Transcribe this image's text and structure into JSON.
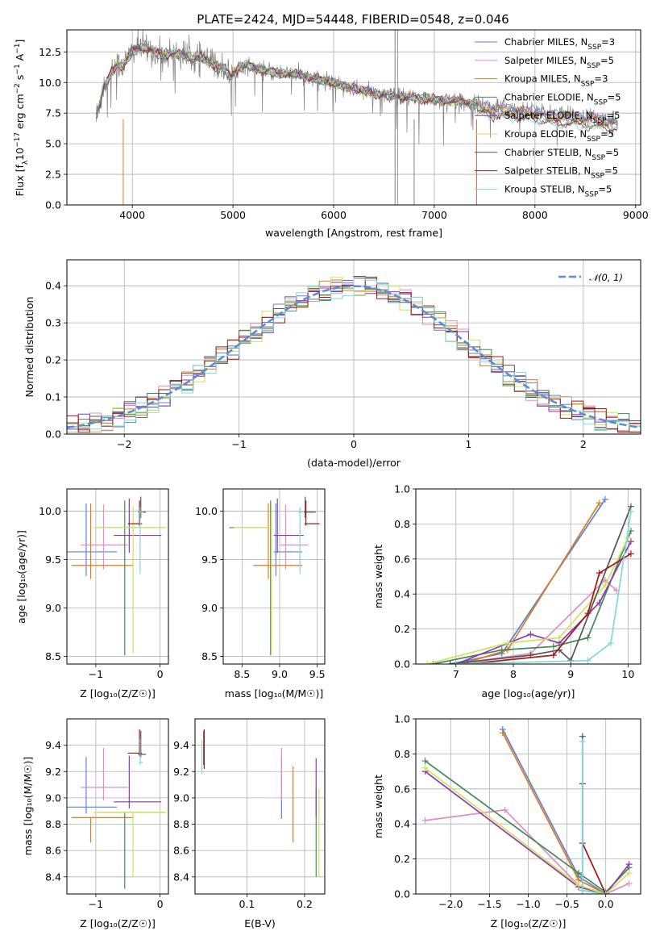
{
  "colors": {
    "Chabrier MILES": "#5b82d9",
    "Salpeter MILES": "#e48cc3",
    "Kroupa MILES": "#e07a21",
    "Chabrier ELODIE": "#3f8a54",
    "Salpeter ELODIE": "#8e37b2",
    "Kroupa ELODIE": "#cde45a",
    "Chabrier STELIB": "#555555",
    "Salpeter STELIB": "#a01818",
    "Kroupa STELIB": "#7fd9d9",
    "data": "#808080",
    "normal": "#5b8ad9"
  },
  "chart_data": [
    {
      "id": "spectrum",
      "type": "line",
      "title": "PLATE=2424, MJD=54448, FIBERID=0548, z=0.046",
      "xlabel": "wavelength [Angstrom, rest frame]",
      "ylabel": "Flux [f",
      "ylabel_sub": "λ",
      "ylabel_rest": "10",
      "ylabel_sup1": "−17",
      "ylabel_tail": " erg cm",
      "ylabel_sup2": "−2",
      "ylabel_tail2": " s",
      "ylabel_sup3": "−1",
      "ylabel_tail3": " A",
      "ylabel_sup4": "−1",
      "ylabel_end": "]",
      "xlim": [
        3350,
        9050
      ],
      "ylim": [
        0,
        14.3
      ],
      "xticks": [
        4000,
        5000,
        6000,
        7000,
        8000,
        9000
      ],
      "yticks": [
        0.0,
        2.5,
        5.0,
        7.5,
        10.0,
        12.5
      ],
      "legend_position": "upper right",
      "legend": [
        {
          "name": "Chabrier MILES",
          "n": "3"
        },
        {
          "name": "Salpeter MILES",
          "n": "5"
        },
        {
          "name": "Kroupa MILES",
          "n": "3"
        },
        {
          "name": "Chabrier ELODIE",
          "n": "5"
        },
        {
          "name": "Salpeter ELODIE",
          "n": "5"
        },
        {
          "name": "Kroupa ELODIE",
          "n": "5"
        },
        {
          "name": "Chabrier STELIB",
          "n": "5"
        },
        {
          "name": "Salpeter STELIB",
          "n": "5"
        },
        {
          "name": "Kroupa STELIB",
          "n": "5"
        }
      ],
      "legend_prefix": ", N",
      "legend_sub": "SSP",
      "continuum": [
        [
          3640,
          7.2
        ],
        [
          3680,
          8.4
        ],
        [
          3720,
          9.8
        ],
        [
          3760,
          10.2
        ],
        [
          3800,
          11.0
        ],
        [
          3850,
          11.5
        ],
        [
          3900,
          11.3
        ],
        [
          3950,
          11.9
        ],
        [
          4000,
          12.6
        ],
        [
          4100,
          12.9
        ],
        [
          4200,
          12.6
        ],
        [
          4300,
          12.2
        ],
        [
          4400,
          12.4
        ],
        [
          4500,
          12.3
        ],
        [
          4600,
          12.0
        ],
        [
          4700,
          12.0
        ],
        [
          4800,
          11.5
        ],
        [
          4900,
          11.2
        ],
        [
          4980,
          10.5
        ],
        [
          5050,
          11.2
        ],
        [
          5150,
          11.4
        ],
        [
          5250,
          11.1
        ],
        [
          5400,
          10.8
        ],
        [
          5600,
          10.7
        ],
        [
          5800,
          10.3
        ],
        [
          6000,
          10.0
        ],
        [
          6200,
          9.5
        ],
        [
          6400,
          9.1
        ],
        [
          6600,
          8.9
        ],
        [
          6800,
          8.7
        ],
        [
          7000,
          8.6
        ],
        [
          7200,
          8.5
        ],
        [
          7400,
          8.3
        ],
        [
          7600,
          8.0
        ],
        [
          7800,
          7.9
        ],
        [
          8000,
          7.7
        ],
        [
          8200,
          7.4
        ],
        [
          8400,
          7.3
        ],
        [
          8600,
          7.1
        ],
        [
          8800,
          6.9
        ]
      ],
      "dropouts": [
        3910,
        6610,
        6800,
        7420
      ]
    },
    {
      "id": "residuals",
      "type": "histogram",
      "xlabel": "(data-model)/error",
      "ylabel": "Normed distribution",
      "xlim": [
        -2.5,
        2.5
      ],
      "ylim": [
        0,
        0.47
      ],
      "xticks": [
        -2,
        -1,
        0,
        1,
        2
      ],
      "yticks": [
        0.0,
        0.1,
        0.2,
        0.3,
        0.4
      ],
      "bin_width": 0.1,
      "legend_position": "upper right",
      "legend": [
        {
          "name": "𝒩(0, 1)"
        }
      ]
    },
    {
      "id": "age-vs-Z",
      "type": "errorbar",
      "xlabel": "Z [log₁₀(Z/Z☉)]",
      "ylabel": "age  [log₁₀(age/yr)]",
      "xlim": [
        -1.45,
        0.13
      ],
      "ylim": [
        8.42,
        10.23
      ],
      "xticks": [
        -1,
        0
      ],
      "yticks": [
        8.5,
        9.0,
        9.5,
        10.0
      ],
      "points": [
        {
          "model": "Chabrier MILES",
          "x": -1.15,
          "xerr": [
            0.45,
            0.48
          ],
          "y": 9.58,
          "yerr": [
            0.25,
            0.5
          ]
        },
        {
          "model": "Salpeter MILES",
          "x": -0.88,
          "xerr": [
            0.35,
            0.38
          ],
          "y": 9.65,
          "yerr": [
            0.25,
            0.42
          ]
        },
        {
          "model": "Kroupa MILES",
          "x": -1.08,
          "xerr": [
            0.3,
            0.66
          ],
          "y": 9.44,
          "yerr": [
            0.14,
            0.64
          ]
        },
        {
          "model": "Chabrier ELODIE",
          "x": -0.55,
          "xerr": [
            0.4,
            0.62
          ],
          "y": 9.83,
          "yerr": [
            1.32,
            0.28
          ]
        },
        {
          "model": "Salpeter ELODIE",
          "x": -0.48,
          "xerr": [
            0.24,
            0.5
          ],
          "y": 9.75,
          "yerr": [
            0.18,
            0.38
          ]
        },
        {
          "model": "Kroupa ELODIE",
          "x": -0.42,
          "xerr": [
            0.62,
            0.52
          ],
          "y": 9.83,
          "yerr": [
            1.3,
            0.22
          ]
        },
        {
          "model": "Chabrier STELIB",
          "x": -0.3,
          "xerr": [
            0.04,
            0.08
          ],
          "y": 9.99,
          "yerr": [
            0.06,
            0.16
          ]
        },
        {
          "model": "Salpeter STELIB",
          "x": -0.32,
          "xerr": [
            0.18,
            0.04
          ],
          "y": 9.87,
          "yerr": [
            0.02,
            0.24
          ]
        },
        {
          "model": "Kroupa STELIB",
          "x": -0.31,
          "xerr": [
            0.02,
            0.04
          ],
          "y": 9.99,
          "yerr": [
            0.64,
            0.05
          ]
        }
      ]
    },
    {
      "id": "age-vs-mass",
      "type": "errorbar",
      "xlabel": "mass [log₁₀(M/M☉)]",
      "xlim": [
        8.25,
        9.6
      ],
      "ylim": [
        8.42,
        10.23
      ],
      "xticks": [
        8.5,
        9.0,
        9.5
      ],
      "yticks": [
        8.5,
        9.0,
        9.5,
        10.0
      ],
      "points": [
        {
          "model": "Chabrier MILES",
          "x": 8.95,
          "xerr": [
            0.03,
            0.35
          ],
          "y": 9.58,
          "yerr": [
            0.25,
            0.5
          ]
        },
        {
          "model": "Salpeter MILES",
          "x": 9.08,
          "xerr": [
            0.08,
            0.3
          ],
          "y": 9.65,
          "yerr": [
            0.25,
            0.42
          ]
        },
        {
          "model": "Kroupa MILES",
          "x": 8.85,
          "xerr": [
            0.2,
            0.45
          ],
          "y": 9.44,
          "yerr": [
            0.14,
            0.64
          ]
        },
        {
          "model": "Chabrier ELODIE",
          "x": 8.88,
          "xerr": [
            0.55,
            0.0
          ],
          "y": 9.83,
          "yerr": [
            1.32,
            0.28
          ]
        },
        {
          "model": "Salpeter ELODIE",
          "x": 8.97,
          "xerr": [
            0.05,
            0.35
          ],
          "y": 9.75,
          "yerr": [
            0.18,
            0.38
          ]
        },
        {
          "model": "Kroupa ELODIE",
          "x": 8.89,
          "xerr": [
            0.5,
            0.01
          ],
          "y": 9.83,
          "yerr": [
            1.3,
            0.22
          ]
        },
        {
          "model": "Chabrier STELIB",
          "x": 9.34,
          "xerr": [
            0.02,
            0.14
          ],
          "y": 9.99,
          "yerr": [
            0.06,
            0.16
          ]
        },
        {
          "model": "Salpeter STELIB",
          "x": 9.35,
          "xerr": [
            0.02,
            0.18
          ],
          "y": 9.87,
          "yerr": [
            0.02,
            0.24
          ]
        },
        {
          "model": "Kroupa STELIB",
          "x": 9.27,
          "xerr": [
            0.02,
            0.04
          ],
          "y": 9.99,
          "yerr": [
            0.64,
            0.05
          ]
        }
      ]
    },
    {
      "id": "weight-vs-age",
      "type": "line",
      "xlabel": "age  [log₁₀(age/yr)]",
      "ylabel": "mass weight",
      "xlim": [
        6.3,
        10.22
      ],
      "ylim": [
        0,
        1.0
      ],
      "xticks": [
        7,
        8,
        9,
        10
      ],
      "yticks": [
        0.0,
        0.2,
        0.4,
        0.6,
        0.8,
        1.0
      ],
      "series": [
        {
          "model": "Chabrier MILES",
          "x": [
            6.9,
            7.8,
            9.6
          ],
          "y": [
            0.0,
            0.06,
            0.94
          ]
        },
        {
          "model": "Salpeter MILES",
          "x": [
            7.0,
            8.3,
            9.6,
            9.8
          ],
          "y": [
            0.0,
            0.06,
            0.48,
            0.42
          ]
        },
        {
          "model": "Kroupa MILES",
          "x": [
            7.1,
            7.9,
            9.5
          ],
          "y": [
            0.0,
            0.08,
            0.92
          ]
        },
        {
          "model": "Chabrier ELODIE",
          "x": [
            6.6,
            7.8,
            8.7,
            9.3,
            10.05
          ],
          "y": [
            0.0,
            0.08,
            0.1,
            0.15,
            0.76
          ]
        },
        {
          "model": "Salpeter ELODIE",
          "x": [
            7.0,
            8.3,
            8.8,
            9.5,
            10.05
          ],
          "y": [
            0.0,
            0.17,
            0.12,
            0.35,
            0.7
          ]
        },
        {
          "model": "Kroupa ELODIE",
          "x": [
            6.5,
            7.9,
            8.8,
            9.6,
            10.0
          ],
          "y": [
            0.0,
            0.12,
            0.15,
            0.45,
            0.72
          ]
        },
        {
          "model": "Chabrier STELIB",
          "x": [
            6.9,
            8.3,
            8.8,
            9.0,
            10.05
          ],
          "y": [
            0.0,
            0.05,
            0.08,
            0.02,
            0.9
          ]
        },
        {
          "model": "Salpeter STELIB",
          "x": [
            7.2,
            8.7,
            9.3,
            9.5,
            10.05
          ],
          "y": [
            0.0,
            0.05,
            0.29,
            0.52,
            0.63
          ]
        },
        {
          "model": "Kroupa STELIB",
          "x": [
            7.0,
            9.3,
            9.7,
            10.05
          ],
          "y": [
            0.0,
            0.02,
            0.12,
            0.87
          ]
        }
      ]
    },
    {
      "id": "mass-vs-Z",
      "type": "errorbar",
      "xlabel": "Z [log₁₀(Z/Z☉)]",
      "ylabel": "mass [log₁₀(M/M☉)]",
      "xlim": [
        -1.45,
        0.13
      ],
      "ylim": [
        8.27,
        9.6
      ],
      "xticks": [
        -1,
        0
      ],
      "yticks": [
        8.4,
        8.6,
        8.8,
        9.0,
        9.2,
        9.4
      ],
      "points": [
        {
          "model": "Chabrier MILES",
          "x": -1.15,
          "xerr": [
            0.45,
            0.48
          ],
          "y": 8.93,
          "yerr": [
            0.05,
            0.38
          ]
        },
        {
          "model": "Salpeter MILES",
          "x": -0.88,
          "xerr": [
            0.35,
            0.38
          ],
          "y": 9.08,
          "yerr": [
            0.1,
            0.3
          ]
        },
        {
          "model": "Kroupa MILES",
          "x": -1.08,
          "xerr": [
            0.3,
            0.66
          ],
          "y": 8.85,
          "yerr": [
            0.19,
            0.0
          ]
        },
        {
          "model": "Chabrier ELODIE",
          "x": -0.55,
          "xerr": [
            0.4,
            0.62
          ],
          "y": 8.89,
          "yerr": [
            0.58,
            0.0
          ]
        },
        {
          "model": "Salpeter ELODIE",
          "x": -0.48,
          "xerr": [
            0.24,
            0.5
          ],
          "y": 8.97,
          "yerr": [
            0.05,
            0.35
          ]
        },
        {
          "model": "Kroupa ELODIE",
          "x": -0.42,
          "xerr": [
            0.62,
            0.52
          ],
          "y": 8.89,
          "yerr": [
            0.49,
            0.0
          ]
        },
        {
          "model": "Chabrier STELIB",
          "x": -0.3,
          "xerr": [
            0.04,
            0.08
          ],
          "y": 9.33,
          "yerr": [
            0.02,
            0.18
          ]
        },
        {
          "model": "Salpeter STELIB",
          "x": -0.32,
          "xerr": [
            0.18,
            0.04
          ],
          "y": 9.34,
          "yerr": [
            0.02,
            0.18
          ]
        },
        {
          "model": "Kroupa STELIB",
          "x": -0.31,
          "xerr": [
            0.02,
            0.04
          ],
          "y": 9.27,
          "yerr": [
            0.02,
            0.18
          ]
        }
      ]
    },
    {
      "id": "mass-vs-EBV",
      "type": "errorbar",
      "xlabel": "E(B-V)",
      "xlim": [
        0.01,
        0.235
      ],
      "ylim": [
        8.27,
        9.6
      ],
      "xticks": [
        0.1,
        0.2
      ],
      "yticks": [
        8.4,
        8.6,
        8.8,
        9.0,
        9.2,
        9.4
      ],
      "points": [
        {
          "model": "Chabrier MILES",
          "x": 0.16,
          "yrange": [
            8.84,
            9.31
          ]
        },
        {
          "model": "Salpeter MILES",
          "x": 0.16,
          "yrange": [
            8.98,
            9.38
          ]
        },
        {
          "model": "Kroupa MILES",
          "x": 0.18,
          "yrange": [
            8.66,
            9.24
          ]
        },
        {
          "model": "Chabrier ELODIE",
          "x": 0.22,
          "yrange": [
            8.4,
            9.07
          ]
        },
        {
          "model": "Salpeter ELODIE",
          "x": 0.22,
          "yrange": [
            8.86,
            9.3
          ]
        },
        {
          "model": "Kroupa ELODIE",
          "x": 0.225,
          "yrange": [
            8.4,
            9.07
          ]
        },
        {
          "model": "Chabrier STELIB",
          "x": 0.025,
          "yrange": [
            9.25,
            9.51
          ]
        },
        {
          "model": "Salpeter STELIB",
          "x": 0.026,
          "yrange": [
            9.22,
            9.52
          ]
        },
        {
          "model": "Kroupa STELIB",
          "x": 0.022,
          "yrange": [
            9.18,
            9.44
          ]
        }
      ]
    },
    {
      "id": "weight-vs-Z",
      "type": "line",
      "xlabel": "Z [log₁₀(Z/Z☉)]",
      "ylabel": "mass weight",
      "xlim": [
        -2.45,
        0.45
      ],
      "ylim": [
        0,
        1.0
      ],
      "xticks": [
        -2.0,
        -1.5,
        -1.0,
        -0.5,
        0.0
      ],
      "yticks": [
        0.0,
        0.2,
        0.4,
        0.6,
        0.8,
        1.0
      ],
      "series": [
        {
          "model": "Chabrier MILES",
          "x": [
            -1.33,
            -0.35,
            0.0
          ],
          "y": [
            0.94,
            0.1,
            0.0
          ]
        },
        {
          "model": "Salpeter MILES",
          "x": [
            -2.33,
            -1.3,
            -0.35,
            0.0,
            0.3
          ],
          "y": [
            0.42,
            0.48,
            0.05,
            0.0,
            0.06
          ]
        },
        {
          "model": "Kroupa MILES",
          "x": [
            -1.33,
            -0.35,
            0.0
          ],
          "y": [
            0.92,
            0.08,
            0.0
          ]
        },
        {
          "model": "Chabrier ELODIE",
          "x": [
            -2.33,
            -0.35,
            0.0,
            0.3
          ],
          "y": [
            0.76,
            0.12,
            0.01,
            0.15
          ]
        },
        {
          "model": "Salpeter ELODIE",
          "x": [
            -2.33,
            -0.35,
            0.0,
            0.3
          ],
          "y": [
            0.7,
            0.04,
            0.0,
            0.17
          ]
        },
        {
          "model": "Kroupa ELODIE",
          "x": [
            -2.33,
            -0.35,
            0.0,
            0.3
          ],
          "y": [
            0.72,
            0.05,
            0.0,
            0.12
          ]
        },
        {
          "model": "Chabrier STELIB",
          "x": [
            -0.3,
            -0.3,
            0.0
          ],
          "y": [
            0.9,
            0.02,
            0.0
          ]
        },
        {
          "model": "Salpeter STELIB",
          "x": [
            -0.3,
            -0.3,
            0.0
          ],
          "y": [
            0.63,
            0.29,
            0.0
          ]
        },
        {
          "model": "Kroupa STELIB",
          "x": [
            -0.3,
            -0.3,
            0.0
          ],
          "y": [
            0.87,
            0.02,
            0.0
          ]
        }
      ]
    }
  ]
}
